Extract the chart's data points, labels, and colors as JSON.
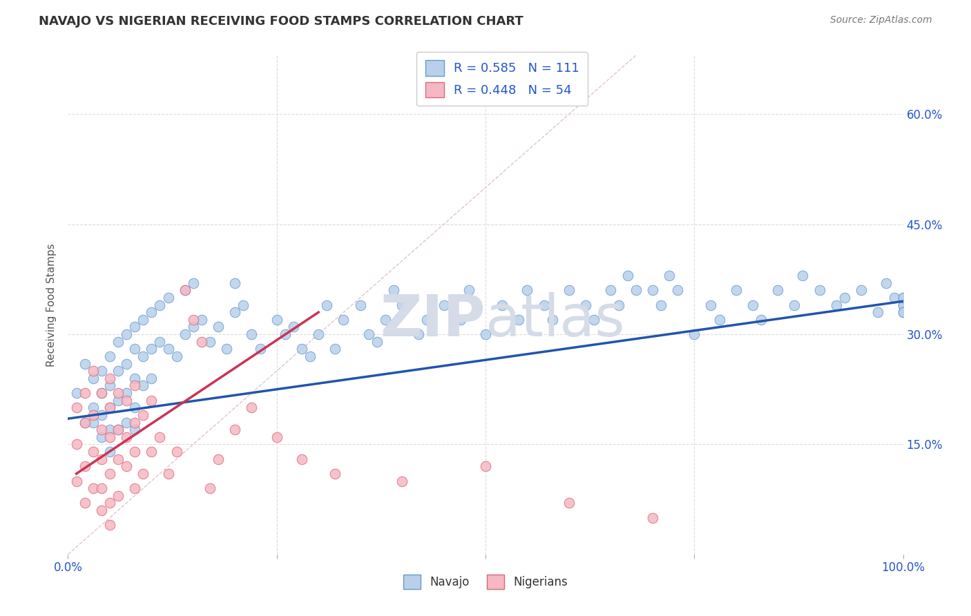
{
  "title": "NAVAJO VS NIGERIAN RECEIVING FOOD STAMPS CORRELATION CHART",
  "source": "Source: ZipAtlas.com",
  "ylabel_label": "Receiving Food Stamps",
  "xmin": 0.0,
  "xmax": 100.0,
  "ymin": 0.0,
  "ymax": 68.0,
  "yticks": [
    0.0,
    15.0,
    30.0,
    45.0,
    60.0
  ],
  "xticks": [
    0.0,
    25.0,
    50.0,
    75.0,
    100.0
  ],
  "navajo_r": "0.585",
  "navajo_n": "111",
  "nigerian_r": "0.448",
  "nigerian_n": "54",
  "navajo_color": "#b8d0ea",
  "nigerian_color": "#f5b8c4",
  "navajo_edge_color": "#6699cc",
  "nigerian_edge_color": "#dd6677",
  "navajo_line_color": "#2255aa",
  "nigerian_line_color": "#cc3355",
  "ref_line_color": "#ddbbcc",
  "legend_color": "#2255cc",
  "watermark_color": "#d5dce8",
  "title_color": "#333333",
  "axis_label_color": "#555555",
  "tick_label_color": "#2255cc",
  "grid_color": "#dddddd",
  "navajo_x": [
    1,
    2,
    2,
    3,
    3,
    3,
    4,
    4,
    4,
    4,
    5,
    5,
    5,
    5,
    5,
    6,
    6,
    6,
    6,
    7,
    7,
    7,
    7,
    8,
    8,
    8,
    8,
    8,
    9,
    9,
    9,
    10,
    10,
    10,
    11,
    11,
    12,
    12,
    13,
    14,
    14,
    15,
    15,
    16,
    17,
    18,
    19,
    20,
    20,
    21,
    22,
    23,
    25,
    26,
    27,
    28,
    29,
    30,
    31,
    32,
    33,
    35,
    36,
    37,
    38,
    39,
    40,
    42,
    43,
    45,
    47,
    48,
    50,
    52,
    54,
    55,
    57,
    58,
    60,
    62,
    63,
    65,
    66,
    67,
    68,
    70,
    71,
    72,
    73,
    75,
    77,
    78,
    80,
    82,
    83,
    85,
    87,
    88,
    90,
    92,
    93,
    95,
    97,
    98,
    99,
    100,
    100,
    100,
    100,
    100,
    100
  ],
  "navajo_y": [
    22,
    18,
    26,
    20,
    24,
    18,
    25,
    22,
    19,
    16,
    27,
    23,
    20,
    17,
    14,
    29,
    25,
    21,
    17,
    30,
    26,
    22,
    18,
    31,
    28,
    24,
    20,
    17,
    32,
    27,
    23,
    33,
    28,
    24,
    34,
    29,
    35,
    28,
    27,
    36,
    30,
    37,
    31,
    32,
    29,
    31,
    28,
    33,
    37,
    34,
    30,
    28,
    32,
    30,
    31,
    28,
    27,
    30,
    34,
    28,
    32,
    34,
    30,
    29,
    32,
    36,
    34,
    30,
    32,
    34,
    32,
    36,
    30,
    34,
    32,
    36,
    34,
    32,
    36,
    34,
    32,
    36,
    34,
    38,
    36,
    36,
    34,
    38,
    36,
    30,
    34,
    32,
    36,
    34,
    32,
    36,
    34,
    38,
    36,
    34,
    35,
    36,
    33,
    37,
    35,
    34,
    35,
    34,
    35,
    33,
    33
  ],
  "nigerian_x": [
    1,
    1,
    1,
    2,
    2,
    2,
    2,
    3,
    3,
    3,
    3,
    4,
    4,
    4,
    4,
    4,
    5,
    5,
    5,
    5,
    5,
    5,
    6,
    6,
    6,
    6,
    7,
    7,
    7,
    8,
    8,
    8,
    8,
    9,
    9,
    10,
    10,
    11,
    12,
    13,
    14,
    15,
    16,
    17,
    18,
    20,
    22,
    25,
    28,
    32,
    40,
    50,
    60,
    70
  ],
  "nigerian_y": [
    20,
    15,
    10,
    22,
    18,
    12,
    7,
    25,
    19,
    14,
    9,
    22,
    17,
    13,
    9,
    6,
    24,
    20,
    16,
    11,
    7,
    4,
    22,
    17,
    13,
    8,
    21,
    16,
    12,
    23,
    18,
    14,
    9,
    19,
    11,
    21,
    14,
    16,
    11,
    14,
    36,
    32,
    29,
    9,
    13,
    17,
    20,
    16,
    13,
    11,
    10,
    12,
    7,
    5
  ],
  "navajo_line_x": [
    0,
    100
  ],
  "navajo_line_y": [
    18.5,
    34.5
  ],
  "nigerian_line_x": [
    1,
    30
  ],
  "nigerian_line_y": [
    11,
    33
  ],
  "ref_line_x": [
    0,
    68
  ],
  "ref_line_y": [
    0,
    68
  ]
}
